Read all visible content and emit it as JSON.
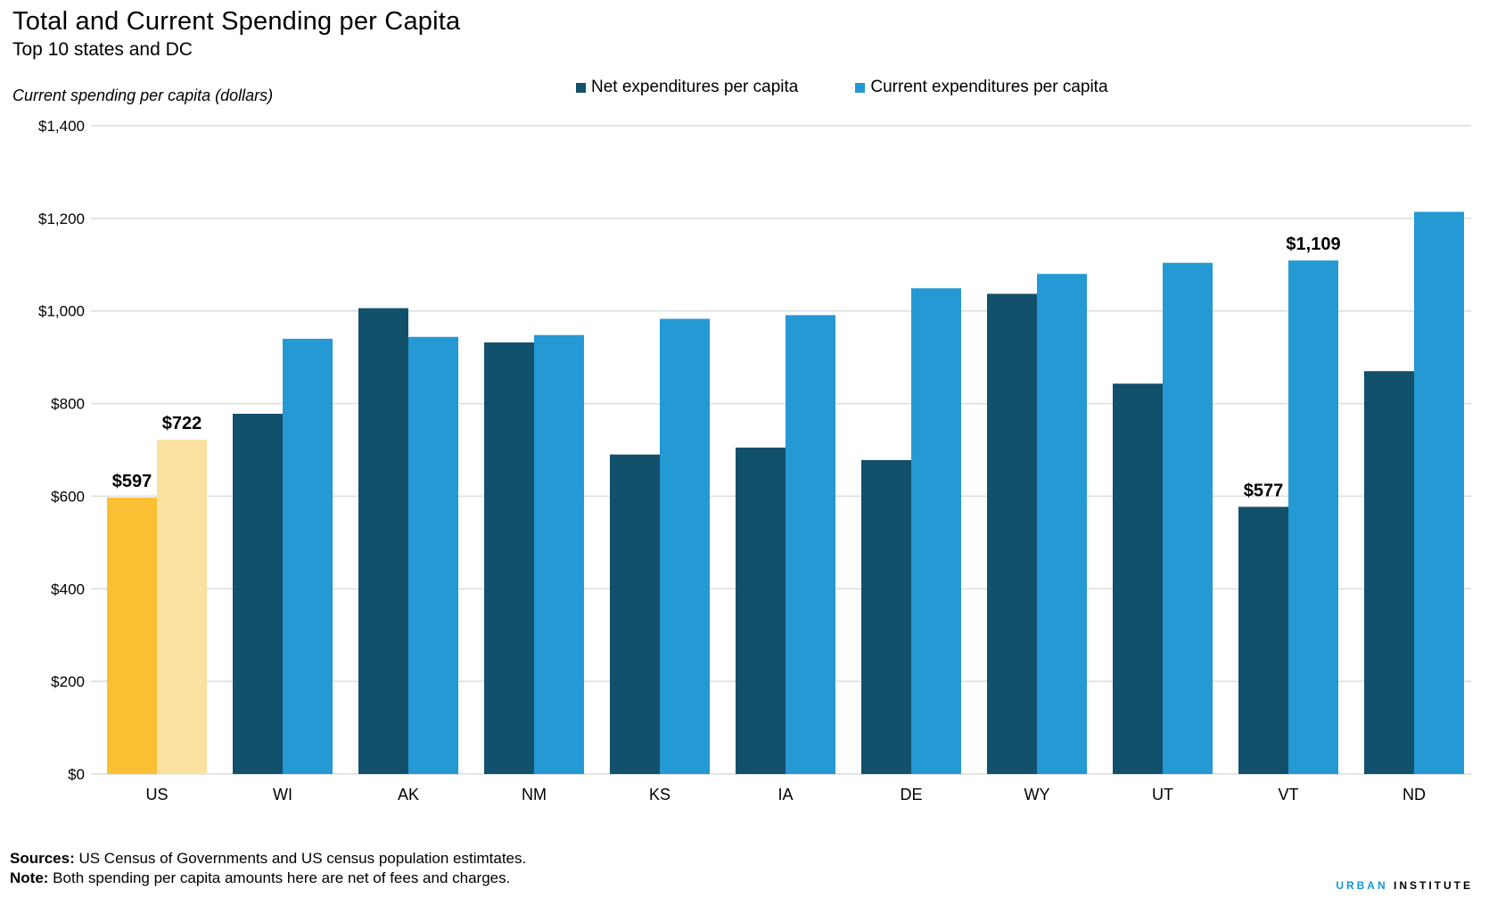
{
  "header": {
    "title": "Total and Current Spending per Capita",
    "subtitle": "Top 10 states and DC"
  },
  "footer": {
    "sources_label": "Sources:",
    "sources_text": " US Census of Governments  and US census population estimtates.",
    "note_label": "Note:",
    "note_text": "  Both spending per capita amounts here are net of fees and charges."
  },
  "logo": {
    "part1": "URBAN",
    "part2": "INSTITUTE"
  },
  "colors": {
    "net": "#12506b",
    "current": "#2499d4",
    "us_net": "#fbbf33",
    "us_current": "#fbe1a0",
    "grid": "#dcdcdc"
  },
  "chart_data": {
    "type": "bar",
    "ylabel": "Current spending per capita (dollars)",
    "ylim": [
      0,
      1400
    ],
    "yticks": [
      0,
      200,
      400,
      600,
      800,
      1000,
      1200,
      1400
    ],
    "ytick_labels": [
      "$0",
      "$200",
      "$400",
      "$600",
      "$800",
      "$1,000",
      "$1,200",
      "$1,400"
    ],
    "grid": true,
    "legend_position": "top",
    "categories": [
      "US",
      "WI",
      "AK",
      "NM",
      "KS",
      "IA",
      "DE",
      "WY",
      "UT",
      "VT",
      "ND"
    ],
    "series": [
      {
        "name": "Net expenditures per capita",
        "values": [
          597,
          778,
          1006,
          932,
          690,
          705,
          678,
          1037,
          843,
          577,
          870
        ]
      },
      {
        "name": "Current expenditures per capita",
        "values": [
          722,
          940,
          944,
          948,
          983,
          991,
          1049,
          1080,
          1104,
          1109,
          1214
        ]
      }
    ],
    "data_labels": [
      {
        "category": "US",
        "series": 0,
        "text": "$597"
      },
      {
        "category": "US",
        "series": 1,
        "text": "$722"
      },
      {
        "category": "VT",
        "series": 0,
        "text": "$577"
      },
      {
        "category": "VT",
        "series": 1,
        "text": "$1,109"
      }
    ]
  }
}
